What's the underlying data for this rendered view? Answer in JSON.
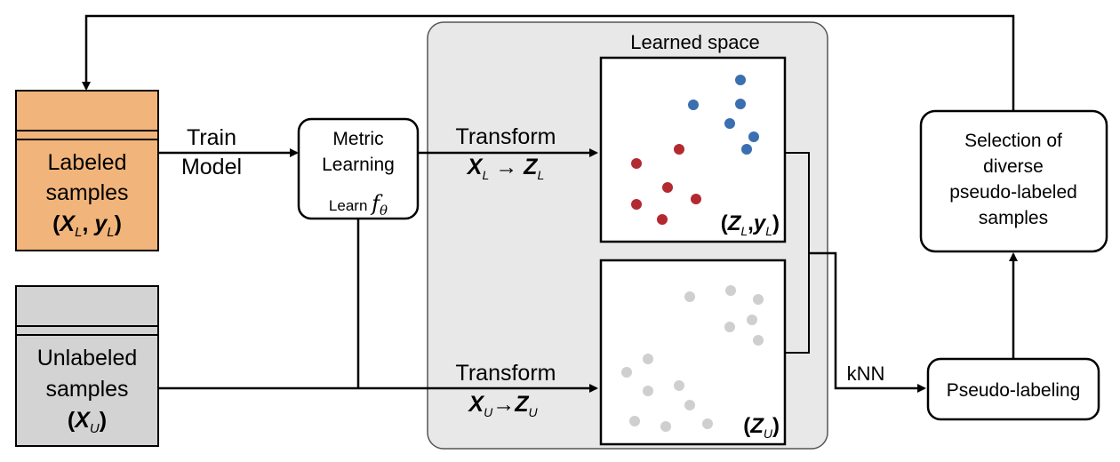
{
  "labeled": {
    "line1": "Labeled",
    "line2": "samples",
    "open": "(",
    "X": "X",
    "X_sub": "L",
    "comma": ", ",
    "y": "y",
    "y_sub": "L",
    "close": ")",
    "color": "#f1b47a"
  },
  "unlabeled": {
    "line1": "Unlabeled",
    "line2": "samples",
    "open": "(",
    "X": "X",
    "X_sub": "U",
    "close": ")",
    "color": "#d3d3d3"
  },
  "train": {
    "line1": "Train",
    "line2": "Model"
  },
  "metric": {
    "line1": "Metric",
    "line2": "Learning",
    "learn": "Learn",
    "f": "f",
    "f_sub": "θ"
  },
  "learned_space": {
    "title": "Learned space",
    "color": "#e8e8e8"
  },
  "transform_labeled": {
    "title": "Transform",
    "X": "X",
    "X_sub": "L",
    "arrow": "→",
    "Z": "Z",
    "Z_sub": "L"
  },
  "transform_unlabeled": {
    "title": "Transform",
    "X": "X",
    "X_sub": "U",
    "arrow": "→",
    "Z": "Z",
    "Z_sub": "U"
  },
  "space_labeled": {
    "open": "(",
    "Z": "Z",
    "Z_sub": "L",
    "comma": ",",
    "y": "y",
    "y_sub": "L",
    "close": ")"
  },
  "space_unlabeled": {
    "open": "(",
    "Z": "Z",
    "Z_sub": "U",
    "close": ")"
  },
  "knn": "kNN",
  "pseudo": "Pseudo-labeling",
  "selection": {
    "line1": "Selection of",
    "line2": "diverse",
    "line3": "pseudo-labeled",
    "line4": "samples"
  },
  "colors": {
    "blue_points": "#3a6fb0",
    "red_points": "#b22a30",
    "gray_points": "#cfcfcf"
  }
}
